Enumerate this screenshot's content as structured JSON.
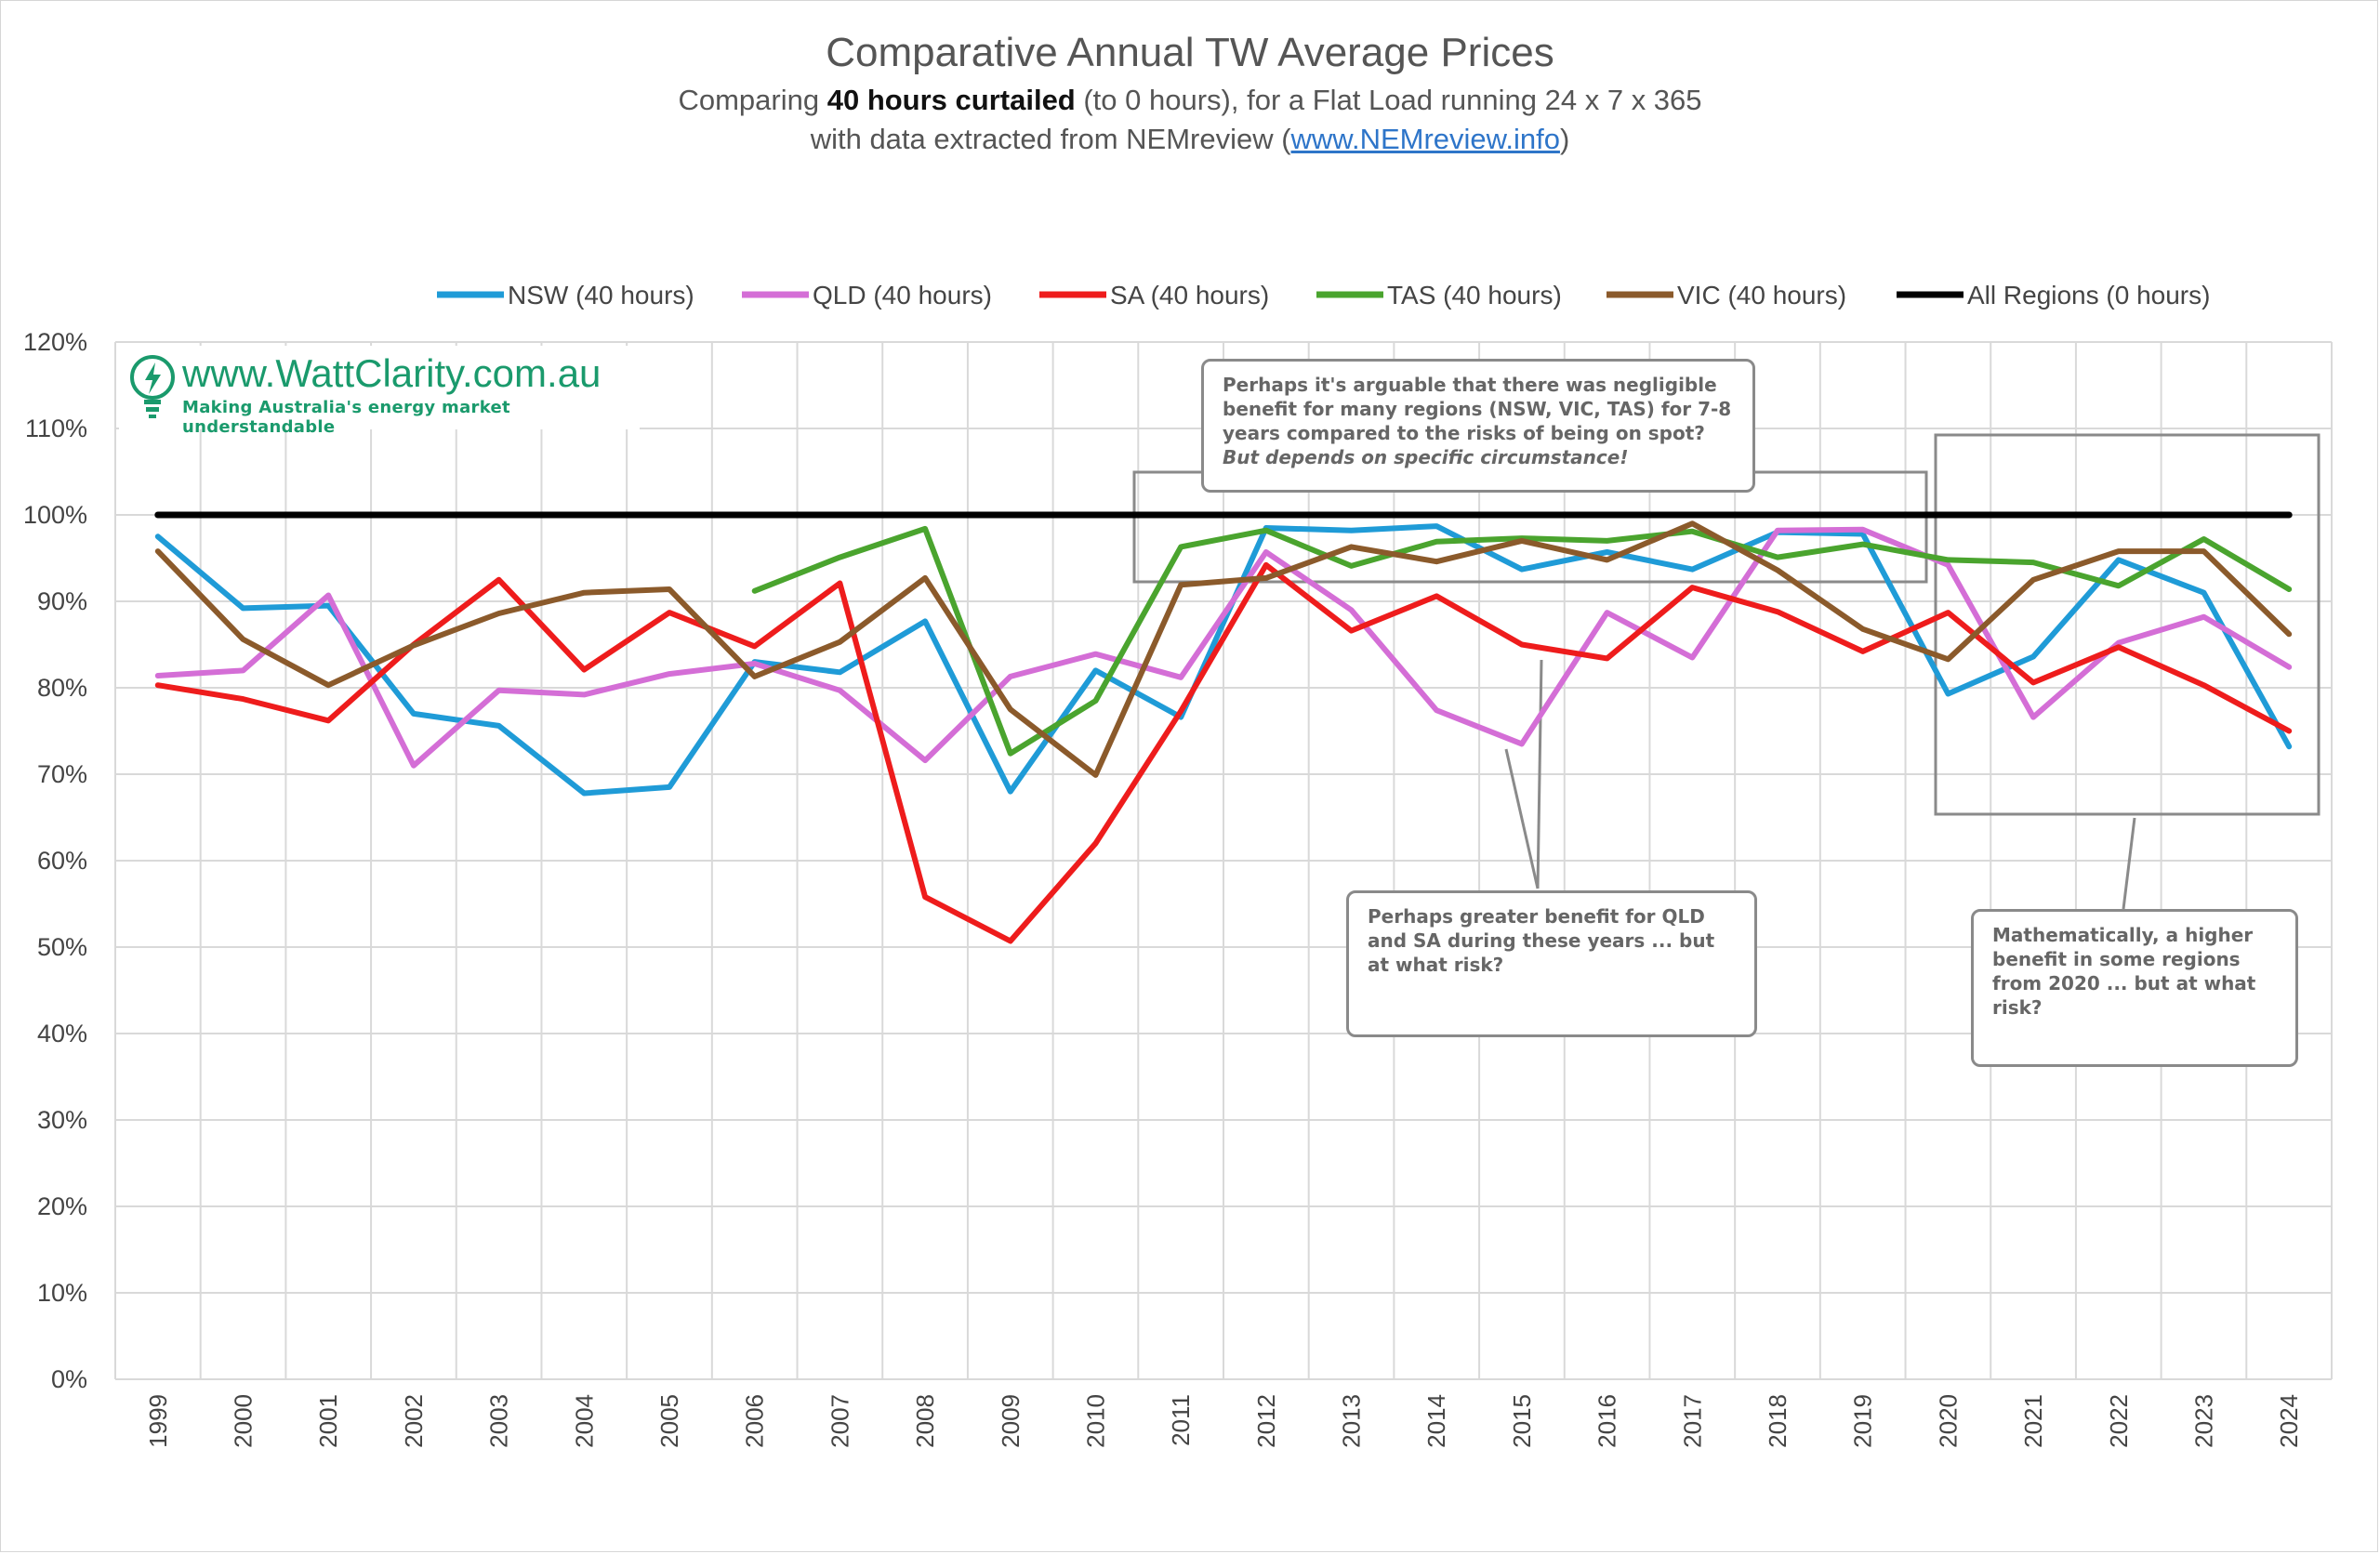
{
  "title": "Comparative Annual TW Average Prices",
  "subtitle_prefix": "Comparing ",
  "subtitle_bold": "40 hours curtailed",
  "subtitle_suffix": " (to 0 hours), for a Flat Load running 24 x 7 x 365",
  "source_prefix": "with data extracted from NEMreview (",
  "source_link": "www.NEMreview.info",
  "source_suffix": ")",
  "logo": {
    "url": "www.WattClarity.com.au",
    "tagline": "Making Australia's energy market understandable",
    "icon": "lightbulb-bolt-icon"
  },
  "annotations": {
    "top": {
      "line1": "Perhaps it's arguable that there was negligible benefit for many regions (NSW, VIC, TAS) for 7-8 years compared to the risks of being on spot?",
      "line2": "But depends on specific circumstance!"
    },
    "middle": {
      "text": "Perhaps greater benefit for QLD and SA during these years ... but at what risk?"
    },
    "right": {
      "text": "Mathematically, a higher benefit in some regions from 2020 ... but at what risk?"
    }
  },
  "colors": {
    "NSW": "#1f9bd7",
    "QLD": "#d46ed6",
    "SA": "#ee1c1c",
    "TAS": "#4aa42e",
    "VIC": "#8b5a2b",
    "ALL": "#000000"
  },
  "chart_data": {
    "type": "line",
    "title": "Comparative Annual TW Average Prices",
    "xlabel": "",
    "ylabel": "",
    "ylim": [
      0,
      1.2
    ],
    "yticks": [
      "0%",
      "10%",
      "20%",
      "30%",
      "40%",
      "50%",
      "60%",
      "70%",
      "80%",
      "90%",
      "100%",
      "110%",
      "120%"
    ],
    "grid": true,
    "legend": "top",
    "x": [
      "1999",
      "2000",
      "2001",
      "2002",
      "2003",
      "2004",
      "2005",
      "2006",
      "2007",
      "2008",
      "2009",
      "2010",
      "2011",
      "2012",
      "2013",
      "2014",
      "2015",
      "2016",
      "2017",
      "2018",
      "2019",
      "2020",
      "2021",
      "2022",
      "2023",
      "2024"
    ],
    "series": [
      {
        "name": "NSW (40 hours)",
        "color": "#1f9bd7",
        "values": [
          0.975,
          0.892,
          0.895,
          0.77,
          0.756,
          0.678,
          0.685,
          0.83,
          0.818,
          0.877,
          0.68,
          0.82,
          0.766,
          0.985,
          0.982,
          0.987,
          0.937,
          0.957,
          0.937,
          0.98,
          0.978,
          0.793,
          0.836,
          0.948,
          0.91,
          0.732
        ]
      },
      {
        "name": "QLD (40 hours)",
        "color": "#d46ed6",
        "values": [
          0.814,
          0.82,
          0.907,
          0.71,
          0.797,
          0.792,
          0.816,
          0.828,
          0.797,
          0.716,
          0.813,
          0.839,
          0.812,
          0.957,
          0.89,
          0.774,
          0.735,
          0.887,
          0.835,
          0.982,
          0.983,
          0.942,
          0.766,
          0.852,
          0.882,
          0.824
        ]
      },
      {
        "name": "SA (40 hours)",
        "color": "#ee1c1c",
        "values": [
          0.803,
          0.787,
          0.762,
          0.85,
          0.925,
          0.821,
          0.887,
          0.848,
          0.921,
          0.558,
          0.507,
          0.62,
          0.773,
          0.942,
          0.866,
          0.906,
          0.85,
          0.834,
          0.916,
          0.888,
          0.842,
          0.887,
          0.806,
          0.847,
          0.803,
          0.75
        ]
      },
      {
        "name": "TAS (40 hours)",
        "color": "#4aa42e",
        "values": [
          null,
          null,
          null,
          null,
          null,
          null,
          null,
          0.912,
          0.951,
          0.984,
          0.724,
          0.785,
          0.963,
          0.982,
          0.941,
          0.969,
          0.973,
          0.97,
          0.981,
          0.951,
          0.966,
          0.948,
          0.945,
          0.918,
          0.972,
          0.914
        ]
      },
      {
        "name": "VIC (40 hours)",
        "color": "#8b5a2b",
        "values": [
          0.958,
          0.856,
          0.803,
          0.849,
          0.886,
          0.91,
          0.914,
          0.813,
          0.853,
          0.927,
          0.775,
          0.699,
          0.919,
          0.927,
          0.963,
          0.946,
          0.97,
          0.948,
          0.99,
          0.936,
          0.868,
          0.833,
          0.925,
          0.958,
          0.958,
          0.862
        ]
      },
      {
        "name": "All Regions (0 hours)",
        "color": "#000000",
        "values": [
          1.0,
          1.0,
          1.0,
          1.0,
          1.0,
          1.0,
          1.0,
          1.0,
          1.0,
          1.0,
          1.0,
          1.0,
          1.0,
          1.0,
          1.0,
          1.0,
          1.0,
          1.0,
          1.0,
          1.0,
          1.0,
          1.0,
          1.0,
          1.0,
          1.0,
          1.0
        ]
      }
    ]
  }
}
